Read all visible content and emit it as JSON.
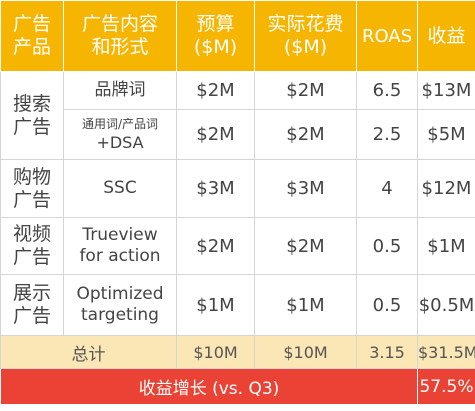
{
  "header": {
    "col1": "广告\n产品",
    "col2": "广告内容\n和形式",
    "col3": "预算\n($M)",
    "col4": "实际花费\n($M)",
    "col5": "ROAS",
    "col6": "收益"
  },
  "groups": [
    {
      "category": "搜索\n广告",
      "rows": [
        {
          "form": "品牌词",
          "budget": "$2M",
          "spend": "$2M",
          "roas": "6.5",
          "revenue": "$13M"
        },
        {
          "form_small": "通用词/产品词",
          "form_plus": "+DSA",
          "budget": "$2M",
          "spend": "$2M",
          "roas": "2.5",
          "revenue": "$5M"
        }
      ]
    },
    {
      "category": "购物\n广告",
      "rows": [
        {
          "form": "SSC",
          "budget": "$3M",
          "spend": "$3M",
          "roas": "4",
          "revenue": "$12M"
        }
      ]
    },
    {
      "category": "视频\n广告",
      "rows": [
        {
          "form": "Trueview\nfor action",
          "budget": "$2M",
          "spend": "$2M",
          "roas": "0.5",
          "revenue": "$1M"
        }
      ]
    },
    {
      "category": "展示\n广告",
      "rows": [
        {
          "form": "Optimized\ntargeting",
          "budget": "$1M",
          "spend": "$1M",
          "roas": "0.5",
          "revenue": "$0.5M"
        }
      ]
    }
  ],
  "total": {
    "label": "总计",
    "budget": "$10M",
    "spend": "$10M",
    "roas": "3.15",
    "revenue": "$31.5M"
  },
  "growth": {
    "label": "收益增长 (vs. Q3)",
    "value": "57.5%"
  },
  "colors": {
    "header": "#f6b500",
    "total_row": "#fbe6b6",
    "growth_row": "#ea4335"
  }
}
